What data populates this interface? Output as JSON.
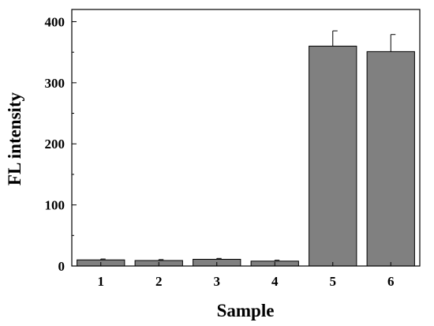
{
  "chart_data": {
    "type": "bar",
    "title": "",
    "xlabel": "Sample",
    "ylabel": "FL intensity",
    "categories": [
      "1",
      "2",
      "3",
      "4",
      "5",
      "6"
    ],
    "values": [
      10,
      9,
      11,
      8,
      360,
      351
    ],
    "errors": [
      1.5,
      1.5,
      1.5,
      1.5,
      25,
      28
    ],
    "ylim": [
      0,
      420
    ],
    "yticks": [
      0,
      100,
      200,
      300,
      400
    ],
    "bar_color": "#808080",
    "bar_edge_color": "#000000",
    "grid": false,
    "legend": "none"
  }
}
